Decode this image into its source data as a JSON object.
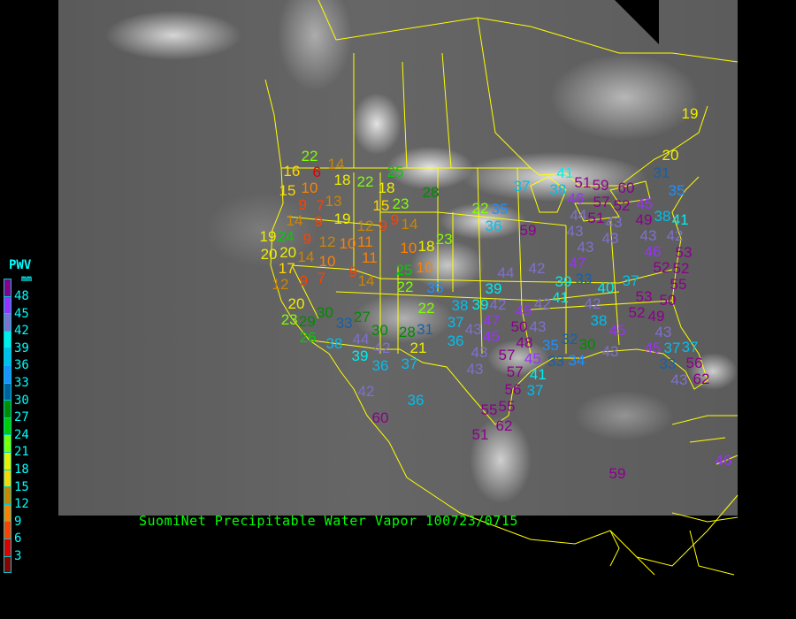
{
  "caption": "SuomiNet Precipitable Water Vapor 100723/0715",
  "legend": {
    "title": "PWV",
    "unit": "mm",
    "ticks": [
      "48",
      "45",
      "42",
      "39",
      "36",
      "33",
      "30",
      "27",
      "24",
      "21",
      "18",
      "15",
      "12",
      "9",
      "6",
      "3"
    ],
    "colors": [
      "#8b008b",
      "#9b30ff",
      "#8070d0",
      "#00eeee",
      "#00bfee",
      "#1e90ff",
      "#005f9f",
      "#008b00",
      "#00cd00",
      "#7fff00",
      "#eeee00",
      "#ffd700",
      "#cd8500",
      "#ff8000",
      "#ff4000",
      "#dd0000",
      "#8b0000"
    ]
  },
  "stations": [
    22,
    16,
    6,
    14,
    18,
    22,
    25,
    18,
    28,
    15,
    10,
    9,
    13,
    7,
    9,
    19,
    15,
    23,
    9,
    14,
    12,
    9,
    14,
    23,
    19,
    24,
    9,
    12,
    10,
    11,
    10,
    18,
    20,
    20,
    17,
    14,
    10,
    11,
    10,
    12,
    9,
    7,
    9,
    14,
    25,
    22,
    35,
    20,
    30,
    22,
    23,
    29,
    33,
    27,
    26,
    30,
    28,
    31,
    38,
    44,
    42,
    39,
    21,
    36,
    37,
    20,
    31,
    41,
    38,
    37,
    51,
    60,
    46,
    59,
    57,
    35,
    22,
    35,
    36,
    44,
    51,
    52,
    45,
    43,
    49,
    38,
    59,
    43,
    43,
    41,
    43,
    46,
    42,
    43,
    47,
    52,
    53,
    42,
    44,
    33,
    52,
    55,
    39,
    39,
    41,
    40,
    37,
    42,
    53,
    50,
    38,
    39,
    42,
    45,
    42,
    52,
    49,
    38,
    37,
    43,
    47,
    45,
    50,
    43,
    45,
    43,
    36,
    32,
    30,
    45,
    37,
    37,
    43,
    48,
    35,
    43,
    33,
    34,
    45,
    57,
    43,
    57,
    33,
    56,
    41,
    37,
    43,
    62,
    42,
    36,
    60,
    56,
    55,
    55,
    62,
    51,
    59,
    46,
    19
  ]
}
